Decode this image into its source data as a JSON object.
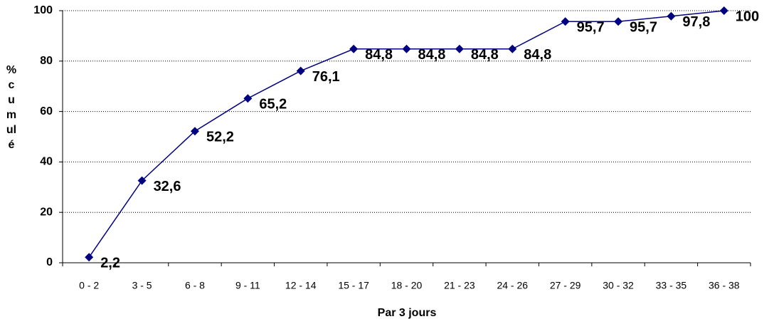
{
  "chart_data": {
    "type": "line",
    "x_label": "Par 3 jours",
    "y_label": "% cumulé",
    "categories": [
      "0 - 2",
      "3 - 5",
      "6 - 8",
      "9 - 11",
      "12 - 14",
      "15 - 17",
      "18 - 20",
      "21 - 23",
      "24 - 26",
      "27 - 29",
      "30 - 32",
      "33 - 35",
      "36 - 38"
    ],
    "values": [
      2.2,
      32.6,
      52.2,
      65.2,
      76.1,
      84.8,
      84.8,
      84.8,
      84.8,
      95.7,
      95.7,
      97.8,
      100
    ],
    "value_labels": [
      "2,2",
      "32,6",
      "52,2",
      "65,2",
      "76,1",
      "84,8",
      "84,8",
      "84,8",
      "84,8",
      "95,7",
      "95,7",
      "97,8",
      "100"
    ],
    "color": "#000080",
    "ylim": [
      0,
      100
    ],
    "yticks": [
      0,
      20,
      40,
      60,
      80,
      100
    ],
    "grid": true
  }
}
